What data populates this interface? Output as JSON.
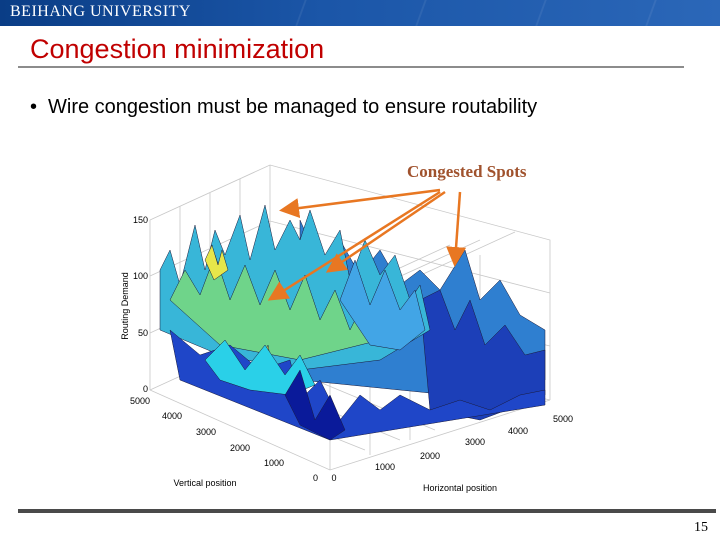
{
  "header": {
    "university": "BEIHANG UNIVERSITY",
    "bar_color": "#1b56a8"
  },
  "slide": {
    "title": "Congestion minimization",
    "title_color": "#c00000",
    "bullet": "Wire congestion must be managed to ensure routability",
    "page_number": "15"
  },
  "figure": {
    "annotation": "Congested Spots",
    "annotation_color": "#a0522d",
    "arrow_color": "#e87722",
    "z_label": "Routing Demand",
    "z_ticks": [
      "0",
      "50",
      "100",
      "150"
    ],
    "vertical_label": "Vertical position",
    "vertical_ticks": [
      "0",
      "1000",
      "2000",
      "3000",
      "4000",
      "5000"
    ],
    "horizontal_label": "Horizontal position",
    "horizontal_ticks": [
      "0",
      "1000",
      "2000",
      "3000",
      "4000",
      "5000"
    ]
  }
}
